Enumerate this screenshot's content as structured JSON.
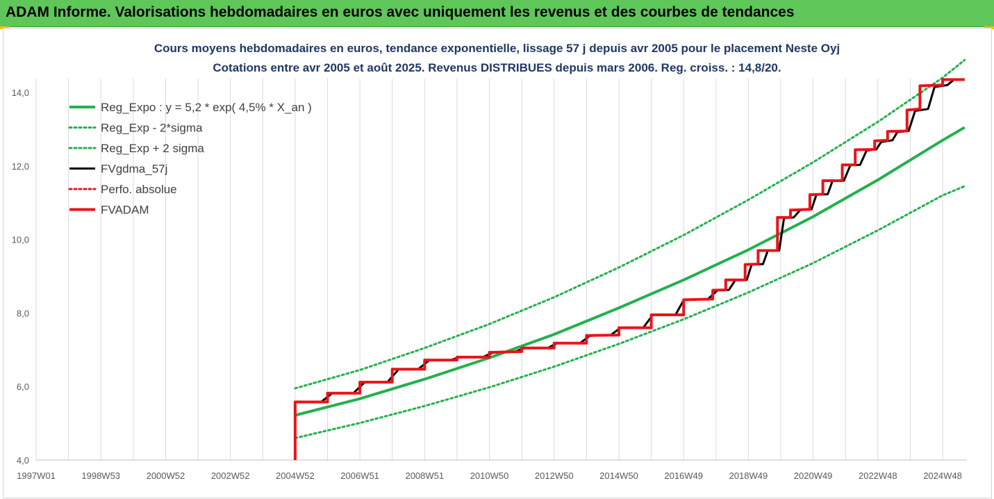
{
  "banner": {
    "title": "ADAM Informe. Valorisations hebdomadaires en euros avec uniquement les revenus et des courbes de tendances"
  },
  "colors": {
    "banner": "#5fc75a",
    "accent": "#f2c200",
    "title": "#1f3864",
    "green": "#22b14c",
    "red": "#e8141b",
    "black": "#000000",
    "grid": "#d9d9d9"
  },
  "chart_data": {
    "type": "line",
    "title": "Cours moyens hebdomadaires en euros, tendance exponentielle, lissage 57 j depuis avr 2005 pour le placement Neste Oyj",
    "subtitle": "Cotations entre avr 2005 et août 2025. Revenus DISTRIBUES depuis mars 2006. Reg. croiss. : 14,8/20.",
    "xlabel": "",
    "ylabel": "",
    "xlim": [
      1997.0,
      2025.75
    ],
    "ylim": [
      4.0,
      14.0
    ],
    "grid": "vertical",
    "legend_position": "top-left",
    "x_ticks": [
      {
        "x": 1997.0,
        "label": "1997W01"
      },
      {
        "x": 1999.0,
        "label": "1998W53"
      },
      {
        "x": 2001.0,
        "label": "2000W52"
      },
      {
        "x": 2003.0,
        "label": "2002W52"
      },
      {
        "x": 2005.0,
        "label": "2004W52"
      },
      {
        "x": 2007.0,
        "label": "2006W51"
      },
      {
        "x": 2009.0,
        "label": "2008W51"
      },
      {
        "x": 2011.0,
        "label": "2010W50"
      },
      {
        "x": 2013.0,
        "label": "2012W50"
      },
      {
        "x": 2015.0,
        "label": "2014W50"
      },
      {
        "x": 2017.0,
        "label": "2016W49"
      },
      {
        "x": 2019.0,
        "label": "2018W49"
      },
      {
        "x": 2021.0,
        "label": "2020W49"
      },
      {
        "x": 2023.0,
        "label": "2022W48"
      },
      {
        "x": 2025.0,
        "label": "2024W48"
      }
    ],
    "y_ticks": [
      {
        "y": 4.0,
        "label": "4,0"
      },
      {
        "y": 6.0,
        "label": "6,0"
      },
      {
        "y": 8.0,
        "label": "8,0"
      },
      {
        "y": 10.0,
        "label": "10,0"
      },
      {
        "y": 12.0,
        "label": "12,0"
      },
      {
        "y": 14.0,
        "label": "14,0"
      }
    ],
    "series": [
      {
        "name": "Reg_Expo : y = 5,2 * exp( 4,5% *  X_an )",
        "color": "#22b14c",
        "style": "solid",
        "width": 4,
        "points": [
          [
            2005.0,
            5.22
          ],
          [
            2007.0,
            5.67
          ],
          [
            2009.0,
            6.2
          ],
          [
            2011.0,
            6.78
          ],
          [
            2013.0,
            7.42
          ],
          [
            2015.0,
            8.14
          ],
          [
            2017.0,
            8.9
          ],
          [
            2019.0,
            9.72
          ],
          [
            2021.0,
            10.62
          ],
          [
            2023.0,
            11.62
          ],
          [
            2025.0,
            12.7
          ],
          [
            2025.68,
            13.05
          ]
        ]
      },
      {
        "name": "Reg_Exp - 2*sigma",
        "color": "#22b14c",
        "style": "dotted",
        "width": 3,
        "points": [
          [
            2005.0,
            4.6
          ],
          [
            2007.0,
            5.01
          ],
          [
            2009.0,
            5.47
          ],
          [
            2011.0,
            5.98
          ],
          [
            2013.0,
            6.54
          ],
          [
            2015.0,
            7.16
          ],
          [
            2017.0,
            7.83
          ],
          [
            2019.0,
            8.56
          ],
          [
            2021.0,
            9.36
          ],
          [
            2023.0,
            10.25
          ],
          [
            2025.0,
            11.2
          ],
          [
            2025.68,
            11.45
          ]
        ]
      },
      {
        "name": "Reg_Exp + 2 sigma",
        "color": "#22b14c",
        "style": "dotted",
        "width": 3,
        "points": [
          [
            2005.0,
            5.95
          ],
          [
            2007.0,
            6.45
          ],
          [
            2009.0,
            7.05
          ],
          [
            2011.0,
            7.7
          ],
          [
            2013.0,
            8.43
          ],
          [
            2015.0,
            9.24
          ],
          [
            2017.0,
            10.12
          ],
          [
            2019.0,
            11.08
          ],
          [
            2021.0,
            12.1
          ],
          [
            2023.0,
            13.2
          ],
          [
            2025.0,
            14.4
          ],
          [
            2025.68,
            14.88
          ]
        ]
      },
      {
        "name": "FVgdma_57j",
        "color": "#000000",
        "style": "solid",
        "width": 3,
        "points": [
          [
            2005.05,
            5.58
          ],
          [
            2005.8,
            5.58
          ],
          [
            2006.15,
            5.82
          ],
          [
            2006.8,
            5.82
          ],
          [
            2007.15,
            6.12
          ],
          [
            2007.85,
            6.12
          ],
          [
            2008.2,
            6.47
          ],
          [
            2008.8,
            6.47
          ],
          [
            2009.15,
            6.72
          ],
          [
            2009.8,
            6.72
          ],
          [
            2010.1,
            6.8
          ],
          [
            2010.8,
            6.8
          ],
          [
            2011.1,
            6.92
          ],
          [
            2011.8,
            6.95
          ],
          [
            2012.1,
            7.05
          ],
          [
            2012.8,
            7.05
          ],
          [
            2013.1,
            7.18
          ],
          [
            2013.8,
            7.18
          ],
          [
            2014.1,
            7.38
          ],
          [
            2014.75,
            7.4
          ],
          [
            2015.05,
            7.6
          ],
          [
            2015.75,
            7.6
          ],
          [
            2016.05,
            7.95
          ],
          [
            2016.75,
            7.95
          ],
          [
            2017.0,
            8.35
          ],
          [
            2017.75,
            8.38
          ],
          [
            2018.05,
            8.62
          ],
          [
            2018.4,
            8.63
          ],
          [
            2018.6,
            8.9
          ],
          [
            2018.95,
            8.9
          ],
          [
            2019.1,
            9.32
          ],
          [
            2019.45,
            9.33
          ],
          [
            2019.6,
            9.7
          ],
          [
            2019.95,
            9.7
          ],
          [
            2020.1,
            10.58
          ],
          [
            2020.4,
            10.6
          ],
          [
            2020.6,
            10.8
          ],
          [
            2020.95,
            10.82
          ],
          [
            2021.1,
            11.22
          ],
          [
            2021.45,
            11.23
          ],
          [
            2021.6,
            11.6
          ],
          [
            2021.95,
            11.6
          ],
          [
            2022.15,
            12.02
          ],
          [
            2022.45,
            12.03
          ],
          [
            2022.65,
            12.42
          ],
          [
            2022.95,
            12.45
          ],
          [
            2023.1,
            12.65
          ],
          [
            2023.45,
            12.7
          ],
          [
            2023.6,
            12.92
          ],
          [
            2023.95,
            12.95
          ],
          [
            2024.15,
            13.5
          ],
          [
            2024.55,
            13.55
          ],
          [
            2024.75,
            14.15
          ],
          [
            2025.15,
            14.2
          ],
          [
            2025.35,
            14.35
          ],
          [
            2025.68,
            14.35
          ]
        ]
      },
      {
        "name": "Perfo. absolue",
        "color": "#e8141b",
        "style": "dotted",
        "width": 3,
        "points": []
      },
      {
        "name": "FVADAM",
        "color": "#e8141b",
        "style": "solid",
        "width": 4,
        "points": [
          [
            2005.0,
            4.0
          ],
          [
            2005.0,
            5.58
          ],
          [
            2006.0,
            5.58
          ],
          [
            2006.0,
            5.82
          ],
          [
            2007.0,
            5.82
          ],
          [
            2007.0,
            6.12
          ],
          [
            2008.0,
            6.12
          ],
          [
            2008.0,
            6.47
          ],
          [
            2009.0,
            6.47
          ],
          [
            2009.0,
            6.72
          ],
          [
            2010.0,
            6.72
          ],
          [
            2010.0,
            6.8
          ],
          [
            2011.0,
            6.8
          ],
          [
            2011.0,
            6.93
          ],
          [
            2012.0,
            6.95
          ],
          [
            2012.0,
            7.05
          ],
          [
            2013.0,
            7.05
          ],
          [
            2013.0,
            7.18
          ],
          [
            2014.0,
            7.18
          ],
          [
            2014.0,
            7.39
          ],
          [
            2015.0,
            7.4
          ],
          [
            2015.0,
            7.6
          ],
          [
            2016.0,
            7.6
          ],
          [
            2016.0,
            7.95
          ],
          [
            2017.0,
            7.95
          ],
          [
            2017.0,
            8.36
          ],
          [
            2017.9,
            8.38
          ],
          [
            2017.9,
            8.62
          ],
          [
            2018.3,
            8.63
          ],
          [
            2018.3,
            8.9
          ],
          [
            2018.9,
            8.9
          ],
          [
            2018.9,
            9.32
          ],
          [
            2019.3,
            9.33
          ],
          [
            2019.3,
            9.7
          ],
          [
            2019.9,
            9.7
          ],
          [
            2019.9,
            10.6
          ],
          [
            2020.3,
            10.6
          ],
          [
            2020.3,
            10.8
          ],
          [
            2020.9,
            10.82
          ],
          [
            2020.9,
            11.22
          ],
          [
            2021.3,
            11.23
          ],
          [
            2021.3,
            11.6
          ],
          [
            2021.9,
            11.6
          ],
          [
            2021.9,
            12.03
          ],
          [
            2022.3,
            12.03
          ],
          [
            2022.3,
            12.44
          ],
          [
            2022.9,
            12.45
          ],
          [
            2022.9,
            12.68
          ],
          [
            2023.3,
            12.7
          ],
          [
            2023.3,
            12.94
          ],
          [
            2023.9,
            12.95
          ],
          [
            2023.9,
            13.52
          ],
          [
            2024.3,
            13.55
          ],
          [
            2024.3,
            14.18
          ],
          [
            2025.0,
            14.2
          ],
          [
            2025.0,
            14.35
          ],
          [
            2025.68,
            14.35
          ]
        ]
      }
    ]
  }
}
